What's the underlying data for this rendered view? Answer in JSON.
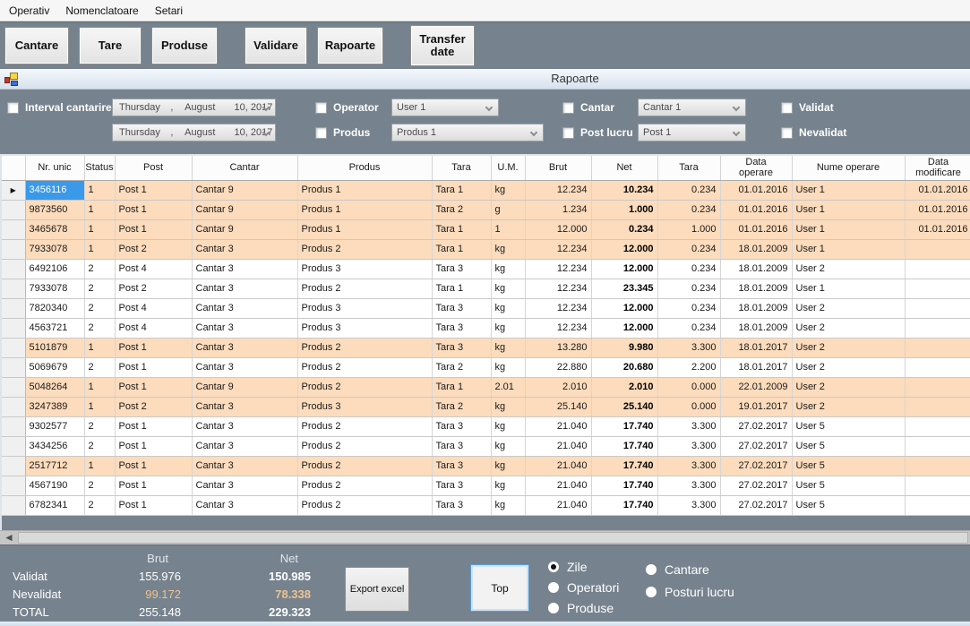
{
  "menu": {
    "items": [
      "Operativ",
      "Nomenclatoare",
      "Setari"
    ]
  },
  "toolbar": {
    "buttons": [
      "Cantare",
      "Tare",
      "Produse",
      "Validare",
      "Rapoarte",
      "Transfer date"
    ]
  },
  "panel": {
    "title": "Rapoarte"
  },
  "filters": {
    "interval_label": "Interval cantarire",
    "date_from": {
      "weekday": "Thursday",
      "comma": ",",
      "month": "August",
      "day": "10, 2017"
    },
    "date_to": {
      "weekday": "Thursday",
      "comma": ",",
      "month": "August",
      "day": "10, 2017"
    },
    "operator": {
      "label": "Operator",
      "value": "User 1"
    },
    "produs": {
      "label": "Produs",
      "value": "Produs 1"
    },
    "cantar": {
      "label": "Cantar",
      "value": "Cantar 1"
    },
    "post_lucru": {
      "label": "Post lucru",
      "value": "Post 1"
    },
    "validat_label": "Validat",
    "nevalidat_label": "Nevalidat"
  },
  "table": {
    "columns": [
      {
        "key": "nr_unic",
        "label": "Nr. unic"
      },
      {
        "key": "status",
        "label": "Status"
      },
      {
        "key": "post",
        "label": "Post"
      },
      {
        "key": "cantar",
        "label": "Cantar"
      },
      {
        "key": "produs",
        "label": "Produs"
      },
      {
        "key": "tara",
        "label": "Tara"
      },
      {
        "key": "um",
        "label": "U.M."
      },
      {
        "key": "brut",
        "label": "Brut"
      },
      {
        "key": "net",
        "label": "Net"
      },
      {
        "key": "tara2",
        "label": "Tara"
      },
      {
        "key": "data_operare",
        "label": "Data\noperare"
      },
      {
        "key": "nume_operare",
        "label": "Nume operare"
      },
      {
        "key": "data_modificare",
        "label": "Data\nmodificare"
      }
    ],
    "rows": [
      {
        "selected": true,
        "highlight": true,
        "cells": [
          "3456116",
          "1",
          "Post 1",
          "Cantar 9",
          "Produs 1",
          "Tara 1",
          "kg",
          "12.234",
          "10.234",
          "0.234",
          "01.01.2016",
          "User 1",
          "01.01.2016"
        ]
      },
      {
        "highlight": true,
        "cells": [
          "9873560",
          "1",
          "Post 1",
          "Cantar 9",
          "Produs 1",
          "Tara 2",
          "g",
          "1.234",
          "1.000",
          "0.234",
          "01.01.2016",
          "User 1",
          "01.01.2016"
        ]
      },
      {
        "highlight": true,
        "cells": [
          "3465678",
          "1",
          "Post 1",
          "Cantar 9",
          "Produs 1",
          "Tara 1",
          "1",
          "12.000",
          "0.234",
          "1.000",
          "01.01.2016",
          "User 1",
          "01.01.2016"
        ]
      },
      {
        "highlight": true,
        "cells": [
          "7933078",
          "1",
          "Post 2",
          "Cantar 3",
          "Produs 2",
          "Tara 1",
          "kg",
          "12.234",
          "12.000",
          "0.234",
          "18.01.2009",
          "User 1",
          ""
        ]
      },
      {
        "highlight": false,
        "cells": [
          "6492106",
          "2",
          "Post 4",
          "Cantar 3",
          "Produs 3",
          "Tara 3",
          "kg",
          "12.234",
          "12.000",
          "0.234",
          "18.01.2009",
          "User 2",
          ""
        ]
      },
      {
        "highlight": false,
        "cells": [
          "7933078",
          "2",
          "Post 2",
          "Cantar 3",
          "Produs 2",
          "Tara 1",
          "kg",
          "12.234",
          "23.345",
          "0.234",
          "18.01.2009",
          "User 1",
          ""
        ]
      },
      {
        "highlight": false,
        "cells": [
          "7820340",
          "2",
          "Post 4",
          "Cantar 3",
          "Produs 3",
          "Tara 3",
          "kg",
          "12.234",
          "12.000",
          "0.234",
          "18.01.2009",
          "User 2",
          ""
        ]
      },
      {
        "highlight": false,
        "cells": [
          "4563721",
          "2",
          "Post 4",
          "Cantar 3",
          "Produs 3",
          "Tara 3",
          "kg",
          "12.234",
          "12.000",
          "0.234",
          "18.01.2009",
          "User 2",
          ""
        ]
      },
      {
        "highlight": true,
        "cells": [
          "5101879",
          "1",
          "Post 1",
          "Cantar 3",
          "Produs 2",
          "Tara 3",
          "kg",
          "13.280",
          "9.980",
          "3.300",
          "18.01.2017",
          "User 2",
          ""
        ]
      },
      {
        "highlight": false,
        "cells": [
          "5069679",
          "2",
          "Post 1",
          "Cantar 3",
          "Produs 2",
          "Tara 2",
          "kg",
          "22.880",
          "20.680",
          "2.200",
          "18.01.2017",
          "User 2",
          ""
        ]
      },
      {
        "highlight": true,
        "cells": [
          "5048264",
          "1",
          "Post 1",
          "Cantar 9",
          "Produs 2",
          "Tara 1",
          "2.01",
          "2.010",
          "2.010",
          "0.000",
          "22.01.2009",
          "User 2",
          ""
        ]
      },
      {
        "highlight": true,
        "cells": [
          "3247389",
          "1",
          "Post 2",
          "Cantar 3",
          "Produs 3",
          "Tara 2",
          "kg",
          "25.140",
          "25.140",
          "0.000",
          "19.01.2017",
          "User 2",
          ""
        ]
      },
      {
        "highlight": false,
        "cells": [
          "9302577",
          "2",
          "Post 1",
          "Cantar 3",
          "Produs 2",
          "Tara 3",
          "kg",
          "21.040",
          "17.740",
          "3.300",
          "27.02.2017",
          "User 5",
          ""
        ]
      },
      {
        "highlight": false,
        "cells": [
          "3434256",
          "2",
          "Post 1",
          "Cantar 3",
          "Produs 2",
          "Tara 3",
          "kg",
          "21.040",
          "17.740",
          "3.300",
          "27.02.2017",
          "User 5",
          ""
        ]
      },
      {
        "highlight": true,
        "cells": [
          "2517712",
          "1",
          "Post 1",
          "Cantar 3",
          "Produs 2",
          "Tara 3",
          "kg",
          "21.040",
          "17.740",
          "3.300",
          "27.02.2017",
          "User 5",
          ""
        ]
      },
      {
        "highlight": false,
        "cells": [
          "4567190",
          "2",
          "Post 1",
          "Cantar 3",
          "Produs 2",
          "Tara 3",
          "kg",
          "21.040",
          "17.740",
          "3.300",
          "27.02.2017",
          "User 5",
          ""
        ]
      },
      {
        "highlight": false,
        "cells": [
          "6782341",
          "2",
          "Post 1",
          "Cantar 3",
          "Produs 2",
          "Tara 3",
          "kg",
          "21.040",
          "17.740",
          "3.300",
          "27.02.2017",
          "User 5",
          ""
        ]
      }
    ]
  },
  "summary": {
    "col_headers": [
      "Brut",
      "Net"
    ],
    "rows": [
      {
        "label": "Validat",
        "brut": "155.976",
        "net": "150.985",
        "tone": "normal"
      },
      {
        "label": "Nevalidat",
        "brut": "99.172",
        "net": "78.338",
        "tone": "orange"
      },
      {
        "label": "TOTAL",
        "brut": "255.148",
        "net": "229.323",
        "tone": "normal"
      }
    ],
    "export_label": "Export excel",
    "top_label": "Top"
  },
  "radios": [
    {
      "label": "Zile",
      "selected": true
    },
    {
      "label": "Operatori",
      "selected": false
    },
    {
      "label": "Produse",
      "selected": false
    },
    {
      "label": "Cantare",
      "selected": false
    },
    {
      "label": "Posturi lucru",
      "selected": false
    }
  ],
  "colors": {
    "panel_gray": "#76838E",
    "highlight_row": "#fcdcbc",
    "selected_cell": "#3a99e8",
    "nevalidat_value": "#eec291",
    "title_bar_top": "#f4f8fc",
    "title_bar_bottom": "#d7e2ee"
  }
}
